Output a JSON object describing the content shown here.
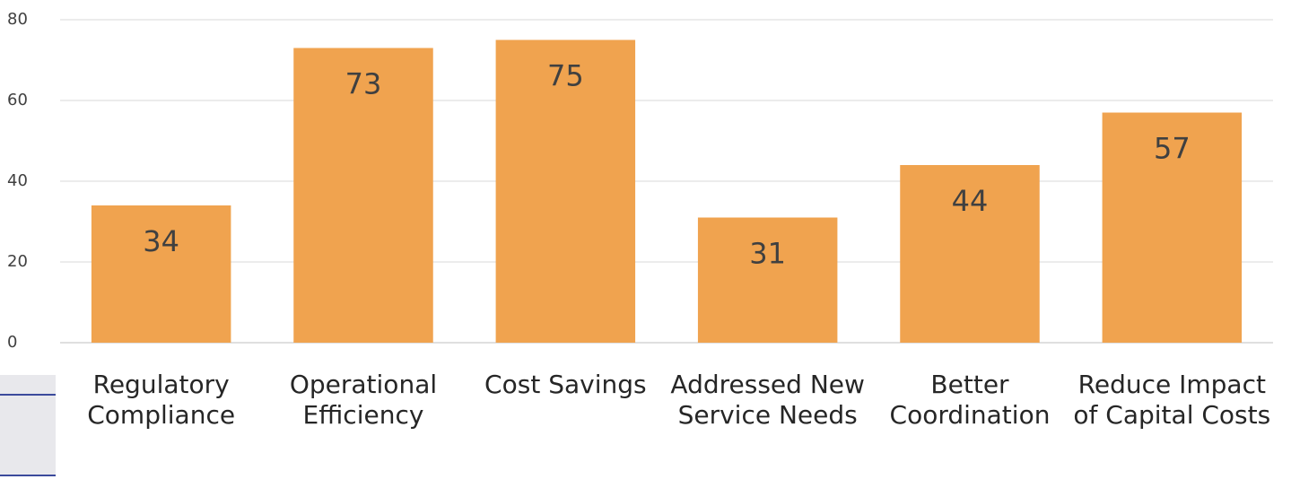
{
  "chart_data": {
    "type": "bar",
    "categories": [
      "Regulatory Compliance",
      "Operational Efficiency",
      "Cost Savings",
      "Addressed New Service Needs",
      "Better Coordination",
      "Reduce Impact of Capital Costs"
    ],
    "values": [
      34,
      73,
      75,
      31,
      44,
      57
    ],
    "color": "#f0a34f",
    "ylim": [
      0,
      80
    ],
    "yticks": [
      0,
      20,
      40,
      60,
      80
    ],
    "grid": true
  }
}
